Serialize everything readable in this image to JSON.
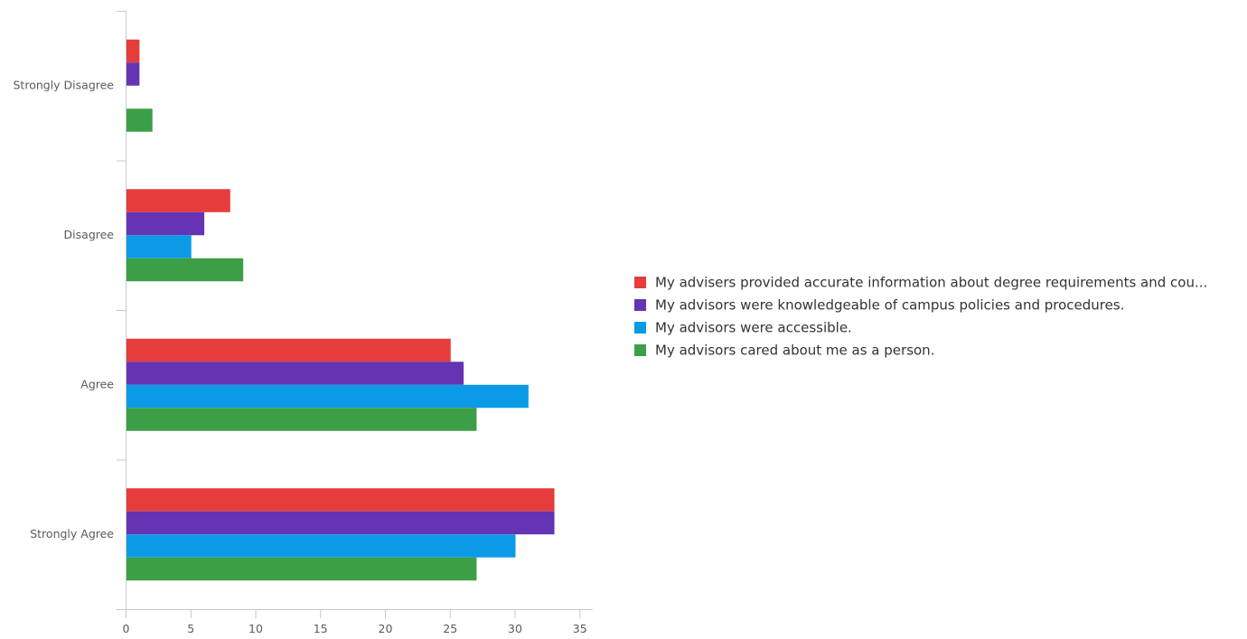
{
  "chart_data": {
    "type": "bar",
    "orientation": "horizontal",
    "title": "",
    "xlabel": "",
    "ylabel": "",
    "categories": [
      "Strongly Disagree",
      "Disagree",
      "Agree",
      "Strongly Agree"
    ],
    "series": [
      {
        "name": "My advisers provided accurate information about degree requirements and cou...",
        "color": "#e63c3c",
        "values": [
          1,
          8,
          25,
          33
        ]
      },
      {
        "name": "My advisors were knowledgeable of campus policies and procedures.",
        "color": "#6434b4",
        "values": [
          1,
          6,
          26,
          33
        ]
      },
      {
        "name": "My advisors were accessible.",
        "color": "#0b9be6",
        "values": [
          0,
          5,
          31,
          30
        ]
      },
      {
        "name": "My advisors cared about me as a person.",
        "color": "#3c9e46",
        "values": [
          2,
          9,
          27,
          27
        ]
      }
    ],
    "xlim": [
      0,
      36
    ],
    "xticks": [
      0,
      5,
      10,
      15,
      20,
      25,
      30,
      35
    ],
    "grid": false,
    "legend_position": "right"
  }
}
